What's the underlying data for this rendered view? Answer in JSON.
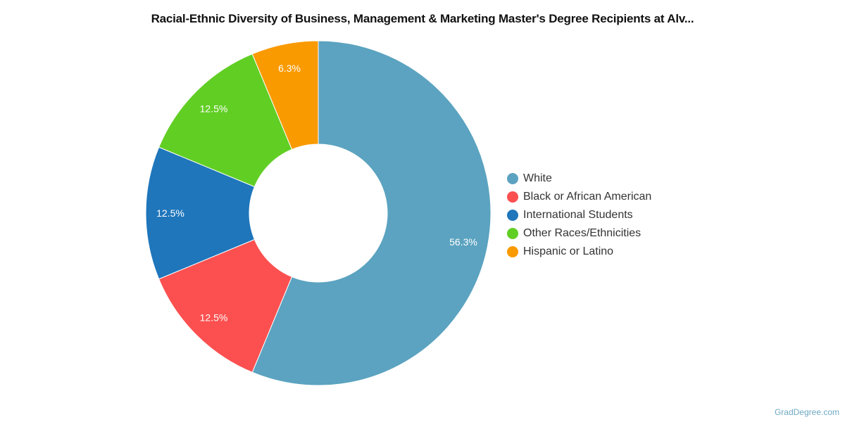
{
  "chart_data": {
    "type": "pie",
    "variant": "donut",
    "title": "Racial-Ethnic Diversity of Business, Management & Marketing Master's Degree Recipients at Alv...",
    "legend_position": "right",
    "slices": [
      {
        "label": "White",
        "value": 56.25,
        "display": "56.3%",
        "color": "#5ba3c0"
      },
      {
        "label": "Black or African American",
        "value": 12.5,
        "display": "12.5%",
        "color": "#fc5050"
      },
      {
        "label": "International Students",
        "value": 12.5,
        "display": "12.5%",
        "color": "#1f76bb"
      },
      {
        "label": "Other Races/Ethnicities",
        "value": 12.5,
        "display": "12.5%",
        "color": "#61ce24"
      },
      {
        "label": "Hispanic or Latino",
        "value": 6.25,
        "display": "6.3%",
        "color": "#f99a00"
      }
    ]
  },
  "credit": "GradDegree.com"
}
